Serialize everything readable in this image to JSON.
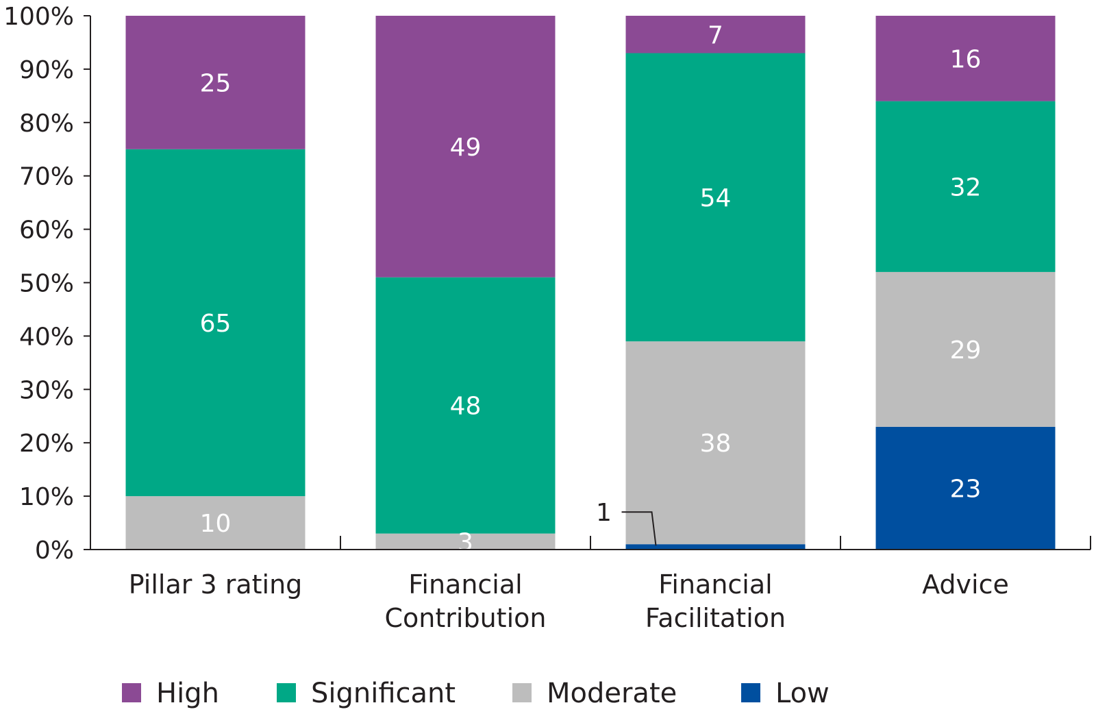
{
  "chart_data": {
    "type": "bar",
    "stacked": true,
    "normalized": true,
    "categories": [
      [
        "Pillar 3 rating"
      ],
      [
        "Financial",
        "Contribution"
      ],
      [
        "Financial",
        "Facilitation"
      ],
      [
        "Advice"
      ]
    ],
    "series": [
      {
        "name": "Low",
        "color": "#004f9f",
        "values": [
          0,
          0,
          1,
          23
        ],
        "labels": [
          "",
          "",
          "1",
          "23"
        ]
      },
      {
        "name": "Moderate",
        "color": "#bdbdbd",
        "values": [
          10,
          3,
          38,
          29
        ],
        "labels": [
          "10",
          "3",
          "38",
          "29"
        ]
      },
      {
        "name": "Significant",
        "color": "#00a886",
        "values": [
          65,
          48,
          54,
          32
        ],
        "labels": [
          "65",
          "48",
          "54",
          "32"
        ]
      },
      {
        "name": "High",
        "color": "#8b4a94",
        "values": [
          25,
          49,
          7,
          16
        ],
        "labels": [
          "25",
          "49",
          "7",
          "16"
        ]
      }
    ],
    "legend_order": [
      "High",
      "Significant",
      "Moderate",
      "Low"
    ],
    "ylim": [
      0,
      100
    ],
    "yticks": [
      0,
      10,
      20,
      30,
      40,
      50,
      60,
      70,
      80,
      90,
      100
    ],
    "ytick_labels": [
      "0%",
      "10%",
      "20%",
      "30%",
      "40%",
      "50%",
      "60%",
      "70%",
      "80%",
      "90%",
      "100%"
    ],
    "grid": false,
    "legend_position": "bottom",
    "title": "",
    "xlabel": "",
    "ylabel": ""
  }
}
